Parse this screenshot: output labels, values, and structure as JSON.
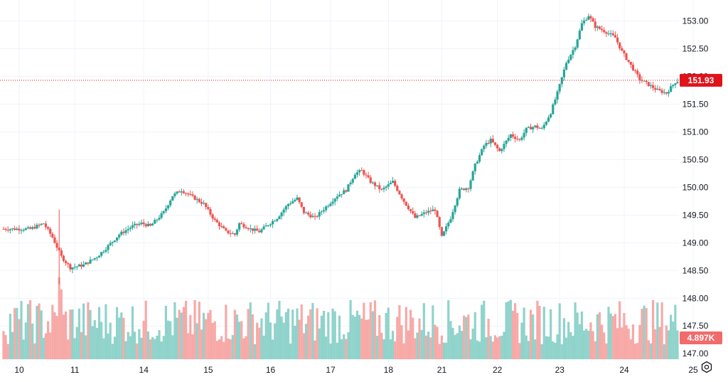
{
  "chart_data": {
    "type": "candlestick",
    "y_axis": {
      "ticks": [
        "147.00",
        "147.50",
        "148.00",
        "148.50",
        "149.00",
        "149.50",
        "150.00",
        "150.50",
        "151.00",
        "151.50",
        "152.00",
        "152.50",
        "153.00"
      ],
      "range": [
        146.9,
        153.25
      ],
      "side": "right"
    },
    "x_axis": {
      "ticks": [
        "10",
        "11",
        "14",
        "15",
        "16",
        "17",
        "18",
        "21",
        "22",
        "23",
        "24",
        "25"
      ]
    },
    "grid": true,
    "colors": {
      "up": "#26a69a",
      "down": "#ef5350",
      "volume_up": "#8fd3cb",
      "volume_down": "#f7a9a7",
      "price_marker": "#e0131b",
      "grid": "#f0f3fa",
      "axis_text": "#131722"
    },
    "anchors": [
      [
        0,
        149.25
      ],
      [
        12,
        149.25
      ],
      [
        18,
        149.35
      ],
      [
        22,
        149.1
      ],
      [
        26,
        148.75
      ],
      [
        30,
        148.55
      ],
      [
        36,
        148.6
      ],
      [
        42,
        148.75
      ],
      [
        46,
        148.9
      ],
      [
        52,
        149.15
      ],
      [
        58,
        149.3
      ],
      [
        62,
        149.35
      ],
      [
        66,
        149.3
      ],
      [
        72,
        149.55
      ],
      [
        76,
        149.85
      ],
      [
        80,
        149.95
      ],
      [
        84,
        149.85
      ],
      [
        90,
        149.7
      ],
      [
        95,
        149.4
      ],
      [
        100,
        149.2
      ],
      [
        104,
        149.15
      ],
      [
        106,
        149.35
      ],
      [
        111,
        149.25
      ],
      [
        115,
        149.2
      ],
      [
        118,
        149.3
      ],
      [
        123,
        149.45
      ],
      [
        128,
        149.7
      ],
      [
        132,
        149.8
      ],
      [
        135,
        149.55
      ],
      [
        140,
        149.45
      ],
      [
        145,
        149.65
      ],
      [
        150,
        149.85
      ],
      [
        154,
        149.95
      ],
      [
        158,
        150.25
      ],
      [
        161,
        150.3
      ],
      [
        165,
        150.1
      ],
      [
        170,
        149.95
      ],
      [
        175,
        150.1
      ],
      [
        180,
        149.75
      ],
      [
        185,
        149.45
      ],
      [
        190,
        149.55
      ],
      [
        194,
        149.6
      ],
      [
        197,
        149.1
      ],
      [
        201,
        149.45
      ],
      [
        205,
        149.95
      ],
      [
        209,
        150.0
      ],
      [
        212,
        150.4
      ],
      [
        216,
        150.75
      ],
      [
        219,
        150.85
      ],
      [
        223,
        150.65
      ],
      [
        228,
        150.95
      ],
      [
        232,
        150.85
      ],
      [
        235,
        151.05
      ],
      [
        239,
        151.1
      ],
      [
        242,
        151.05
      ],
      [
        246,
        151.35
      ],
      [
        249,
        151.7
      ],
      [
        253,
        152.25
      ],
      [
        257,
        152.55
      ],
      [
        260,
        152.95
      ],
      [
        263,
        153.1
      ],
      [
        266,
        152.9
      ],
      [
        271,
        152.8
      ],
      [
        275,
        152.7
      ],
      [
        278,
        152.45
      ],
      [
        282,
        152.2
      ],
      [
        286,
        151.95
      ],
      [
        290,
        151.85
      ],
      [
        294,
        151.75
      ],
      [
        298,
        151.7
      ],
      [
        302,
        151.9
      ],
      [
        304,
        151.93
      ]
    ],
    "last_price": "151.93",
    "volume": {
      "last_value": "4.897K",
      "max": 8.2
    },
    "session_breaks": [
      0,
      25,
      56,
      85,
      113,
      140,
      166,
      190,
      215,
      243,
      272,
      303
    ]
  },
  "price_label": "151.93",
  "volume_label": "4.897K",
  "icons": {
    "settings": "hexagon-gear-icon"
  }
}
